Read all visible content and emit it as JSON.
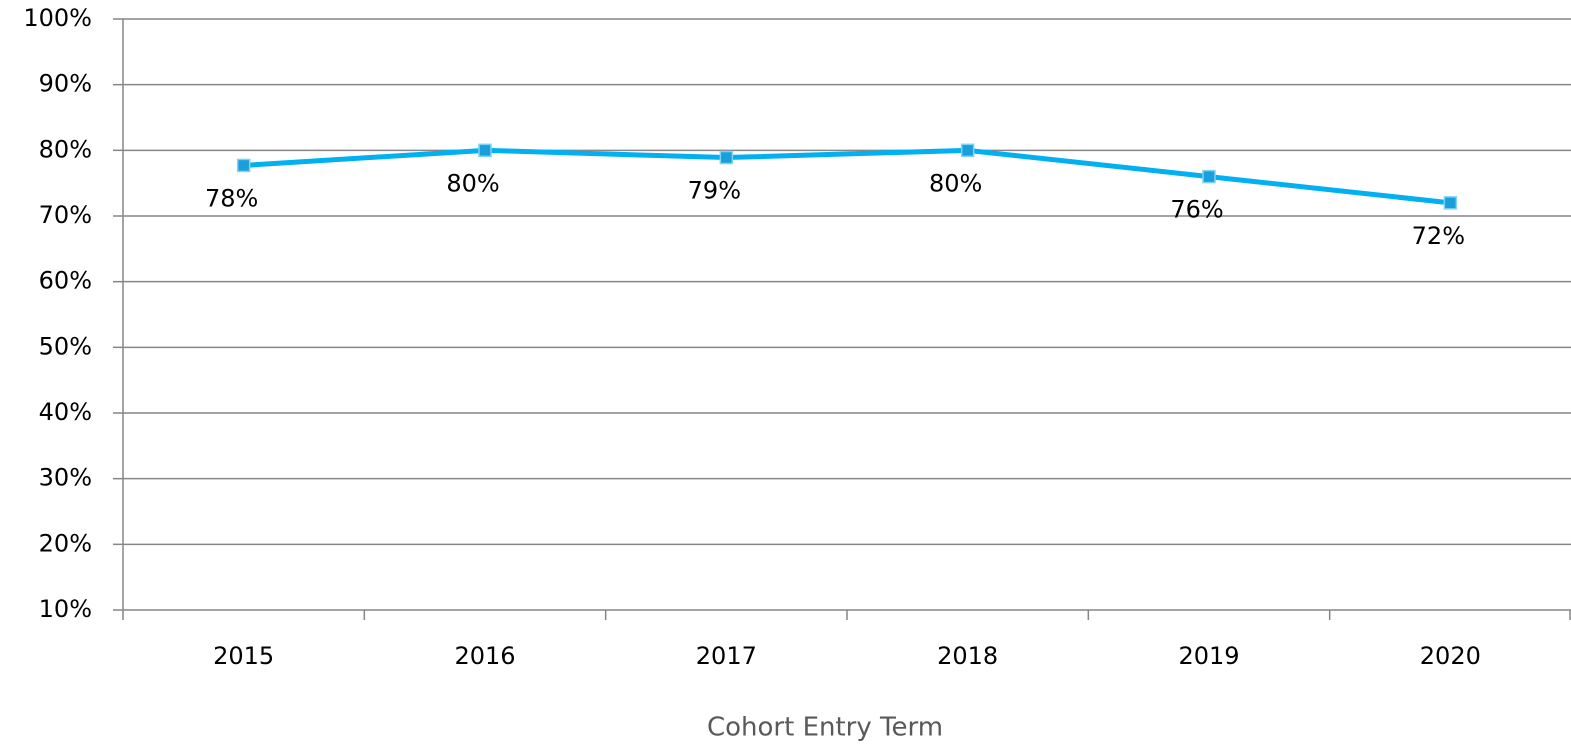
{
  "chart_data": {
    "type": "line",
    "x_label": "Cohort Entry Term",
    "categories": [
      "2015",
      "2016",
      "2017",
      "2018",
      "2019",
      "2020"
    ],
    "series": [
      {
        "name": "Cohort",
        "color": "#00b0f0",
        "values": [
          77.7,
          80,
          78.9,
          80,
          76,
          72
        ],
        "value_labels": [
          "78%",
          "80%",
          "79%",
          "80%",
          "76%",
          "72%"
        ]
      }
    ],
    "ylim": [
      10,
      100
    ],
    "yticks": [
      {
        "value": 10,
        "label": "10%"
      },
      {
        "value": 20,
        "label": "20%"
      },
      {
        "value": 30,
        "label": "30%"
      },
      {
        "value": 40,
        "label": "40%"
      },
      {
        "value": 50,
        "label": "50%"
      },
      {
        "value": 60,
        "label": "60%"
      },
      {
        "value": 70,
        "label": "70%"
      },
      {
        "value": 80,
        "label": "80%"
      },
      {
        "value": 90,
        "label": "90%"
      },
      {
        "value": 100,
        "label": "100%"
      }
    ],
    "grid": true,
    "legend": false
  }
}
